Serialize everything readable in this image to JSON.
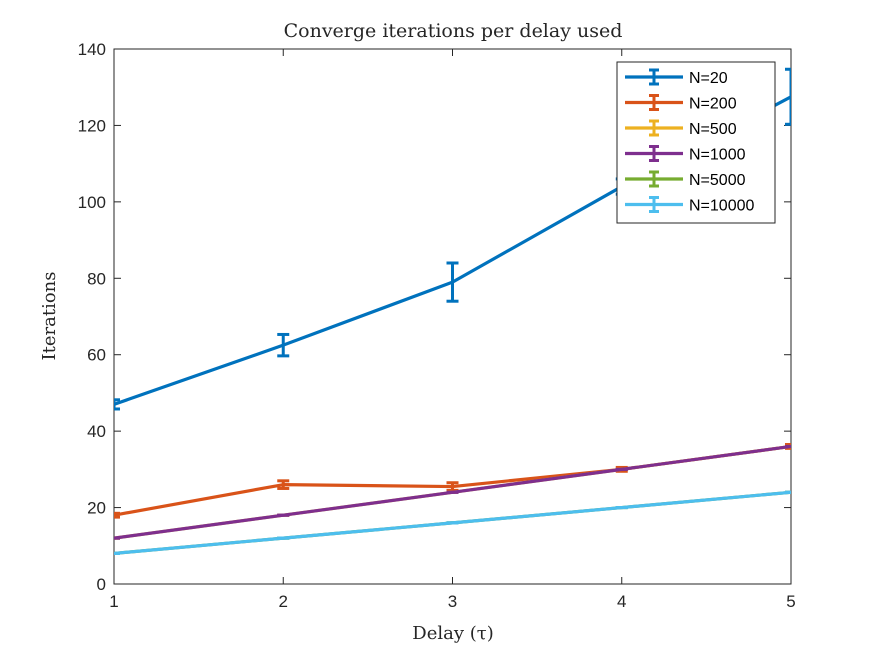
{
  "chart_data": {
    "type": "line",
    "title": "Converge iterations per delay used",
    "xlabel": "Delay (τ)",
    "ylabel": "Iterations",
    "xlim": [
      1,
      5
    ],
    "ylim": [
      0,
      140
    ],
    "xticks": [
      "1",
      "2",
      "3",
      "4",
      "5"
    ],
    "yticks": [
      "0",
      "20",
      "40",
      "60",
      "80",
      "100",
      "120",
      "140"
    ],
    "grid": false,
    "legend_position": "top-right",
    "x": [
      1,
      2,
      3,
      4,
      5
    ],
    "series": [
      {
        "name": "N=20",
        "color": "#0072BD",
        "values": [
          47,
          62.5,
          79,
          104,
          127.5
        ],
        "errors": [
          1.2,
          2.8,
          5,
          2,
          7.2
        ]
      },
      {
        "name": "N=200",
        "color": "#D95319",
        "values": [
          18,
          26,
          25.5,
          30,
          36
        ],
        "errors": [
          0.5,
          1,
          1,
          0.5,
          0.5
        ]
      },
      {
        "name": "N=500",
        "color": "#EDB120",
        "values": [
          12,
          18,
          24,
          30,
          36
        ],
        "errors": [
          0,
          0,
          0,
          0,
          0
        ]
      },
      {
        "name": "N=1000",
        "color": "#7E2F8E",
        "values": [
          12,
          18,
          24,
          30,
          36
        ],
        "errors": [
          0,
          0,
          0,
          0,
          0
        ]
      },
      {
        "name": "N=5000",
        "color": "#77AC30",
        "values": [
          8,
          12,
          16,
          20,
          24
        ],
        "errors": [
          0,
          0,
          0,
          0,
          0
        ]
      },
      {
        "name": "N=10000",
        "color": "#4DBEEE",
        "values": [
          8,
          12,
          16,
          20,
          24
        ],
        "errors": [
          0,
          0,
          0,
          0,
          0
        ]
      }
    ]
  }
}
